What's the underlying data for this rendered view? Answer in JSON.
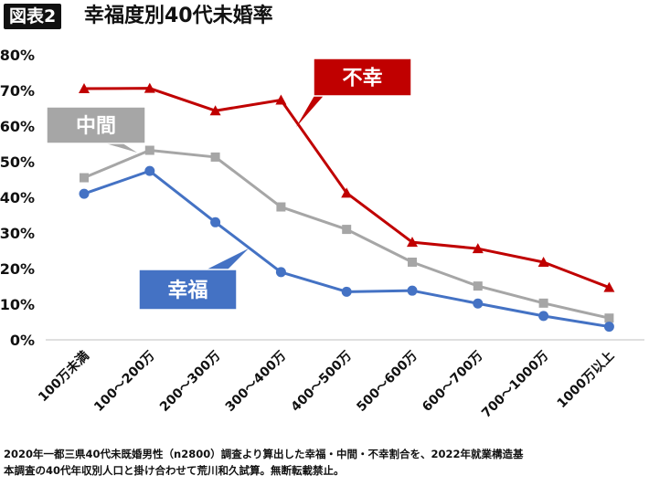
{
  "header": {
    "figure_label": "図表2",
    "title": "幸福度別40代未婚率"
  },
  "chart_data": {
    "type": "line",
    "categories": [
      "100万未満",
      "100～200万",
      "200～300万",
      "300～400万",
      "400～500万",
      "500～600万",
      "600～700万",
      "700～1000万",
      "1000万以上"
    ],
    "ylim": [
      0,
      80
    ],
    "yticks": [
      "0%",
      "10%",
      "20%",
      "30%",
      "40%",
      "50%",
      "60%",
      "70%",
      "80%"
    ],
    "grid": false,
    "series": [
      {
        "name": "不幸",
        "color": "#C00000",
        "marker": "triangle",
        "values": [
          70.5,
          70.6,
          64.3,
          67.3,
          41.2,
          27.4,
          25.6,
          21.8,
          14.7
        ]
      },
      {
        "name": "中間",
        "color": "#A6A6A6",
        "marker": "square",
        "values": [
          45.5,
          53.2,
          51.3,
          37.3,
          31.0,
          21.8,
          15.1,
          10.3,
          6.1
        ]
      },
      {
        "name": "幸福",
        "color": "#4472C4",
        "marker": "circle",
        "values": [
          41.0,
          47.4,
          33.0,
          19.0,
          13.5,
          13.8,
          10.2,
          6.7,
          3.7
        ]
      }
    ]
  },
  "footnote": {
    "line1": "2020年一都三県40代未既婚男性（n2800）調査より算出した幸福・中間・不幸割合を、2022年就業構造基",
    "line2": "本調査の40代年収別人口と掛け合わせて荒川和久試算。無断転載禁止。"
  }
}
